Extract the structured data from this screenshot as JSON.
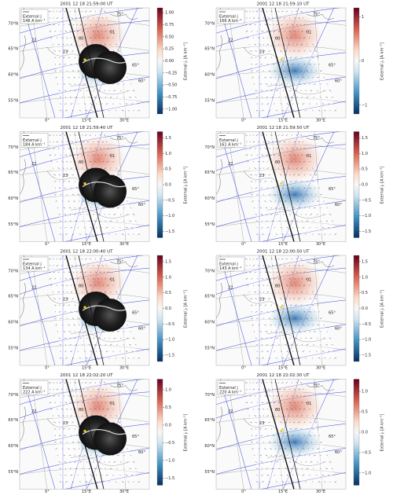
{
  "colorbar_label": "External jᵣ [A km⁻²]",
  "map_labels": {
    "lat": [
      "70°N",
      "65°N",
      "60°N",
      "55°N"
    ],
    "lon": [
      "0°",
      "15°E",
      "30°E"
    ],
    "mlat": [
      "75°",
      "65°",
      "60°"
    ],
    "mlt": [
      "22",
      "23",
      "00",
      "01"
    ]
  },
  "panels": [
    {
      "title": "2001 12 18 21:59:00 UT",
      "legend": [
        "External j",
        "146 A km⁻¹"
      ],
      "camera": true,
      "clim": [
        -1.1,
        1.1
      ],
      "cticks": [
        {
          "value": 1.0,
          "label": "1.00"
        },
        {
          "value": 0.75,
          "label": "0.75"
        },
        {
          "value": 0.5,
          "label": "0.50"
        },
        {
          "value": 0.25,
          "label": "0.25"
        },
        {
          "value": 0,
          "label": "0.00"
        },
        {
          "value": -0.25,
          "label": "−0.25"
        },
        {
          "value": -0.5,
          "label": "−0.50"
        },
        {
          "value": -0.75,
          "label": "−0.75"
        },
        {
          "value": -1.0,
          "label": "−1.00"
        }
      ]
    },
    {
      "title": "2001 12 18 21:59:10 UT",
      "legend": [
        "External j",
        "166 A km⁻¹"
      ],
      "camera": false,
      "clim": [
        -1.2,
        1.2
      ],
      "cticks": [
        {
          "value": 1,
          "label": "1"
        },
        {
          "value": 0,
          "label": "0"
        },
        {
          "value": -1,
          "label": "−1"
        }
      ]
    },
    {
      "title": "2001 12 18 21:59:40 UT",
      "legend": [
        "External j",
        "184 A km⁻¹"
      ],
      "camera": true,
      "clim": [
        -1.7,
        1.7
      ],
      "cticks": [
        {
          "value": 1.5,
          "label": "1.5"
        },
        {
          "value": 1.0,
          "label": "1.0"
        },
        {
          "value": 0.5,
          "label": "0.5"
        },
        {
          "value": 0,
          "label": "0.0"
        },
        {
          "value": -0.5,
          "label": "−0.5"
        },
        {
          "value": -1.0,
          "label": "−1.0"
        },
        {
          "value": -1.5,
          "label": "−1.5"
        }
      ]
    },
    {
      "title": "2001 12 18 21:59:50 UT",
      "legend": [
        "External j",
        "161 A km⁻¹"
      ],
      "camera": false,
      "clim": [
        -1.7,
        1.7
      ],
      "cticks": [
        {
          "value": 1.5,
          "label": "1.5"
        },
        {
          "value": 1.0,
          "label": "1.0"
        },
        {
          "value": 0.5,
          "label": "0.5"
        },
        {
          "value": 0,
          "label": "0.0"
        },
        {
          "value": -0.5,
          "label": "−0.5"
        },
        {
          "value": -1.0,
          "label": "−1.0"
        },
        {
          "value": -1.5,
          "label": "−1.5"
        }
      ]
    },
    {
      "title": "2001 12 18 22:00:40 UT",
      "legend": [
        "External j",
        "134 A km⁻¹"
      ],
      "camera": true,
      "clim": [
        -1.7,
        1.7
      ],
      "cticks": [
        {
          "value": 1.5,
          "label": "1.5"
        },
        {
          "value": 1.0,
          "label": "1.0"
        },
        {
          "value": 0.5,
          "label": "0.5"
        },
        {
          "value": 0,
          "label": "0.0"
        },
        {
          "value": -0.5,
          "label": "−0.5"
        },
        {
          "value": -1.0,
          "label": "−1.0"
        },
        {
          "value": -1.5,
          "label": "−1.5"
        }
      ]
    },
    {
      "title": "2001 12 18 22:00:50 UT",
      "legend": [
        "External j",
        "143 A km⁻¹"
      ],
      "camera": false,
      "clim": [
        -1.7,
        1.7
      ],
      "cticks": [
        {
          "value": 1.5,
          "label": "1.5"
        },
        {
          "value": 1.0,
          "label": "1.0"
        },
        {
          "value": 0.5,
          "label": "0.5"
        },
        {
          "value": 0,
          "label": "0.0"
        },
        {
          "value": -0.5,
          "label": "−0.5"
        },
        {
          "value": -1.0,
          "label": "−1.0"
        },
        {
          "value": -1.5,
          "label": "−1.5"
        }
      ]
    },
    {
      "title": "2001 12 18 22:02:20 UT",
      "legend": [
        "External j",
        "222 A km⁻¹"
      ],
      "camera": true,
      "clim": [
        -1.7,
        1.3
      ],
      "cticks": [
        {
          "value": 1.0,
          "label": "1.0"
        },
        {
          "value": 0.5,
          "label": "0.5"
        },
        {
          "value": 0,
          "label": "0.0"
        },
        {
          "value": -0.5,
          "label": "−0.5"
        },
        {
          "value": -1.0,
          "label": "−1.0"
        },
        {
          "value": -1.5,
          "label": "−1.5"
        }
      ]
    },
    {
      "title": "2001 12 18 22:02:30 UT",
      "legend": [
        "External j",
        "220 A km⁻¹"
      ],
      "camera": false,
      "clim": [
        -1.3,
        1.3
      ],
      "cticks": [
        {
          "value": 1.0,
          "label": "1.0"
        },
        {
          "value": 0.5,
          "label": "0.5"
        },
        {
          "value": 0,
          "label": "0.0"
        },
        {
          "value": -0.5,
          "label": "−0.5"
        },
        {
          "value": -1.0,
          "label": "−1.0"
        }
      ]
    }
  ]
}
